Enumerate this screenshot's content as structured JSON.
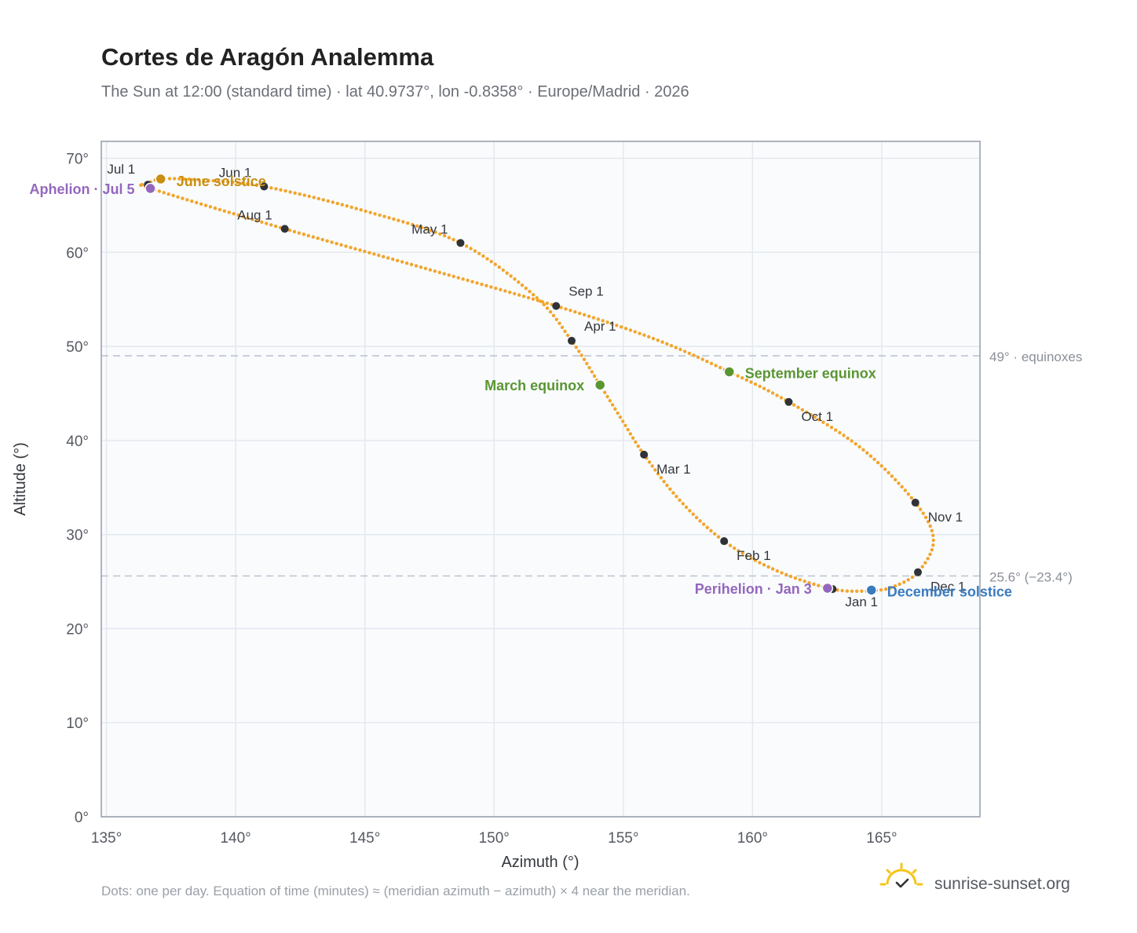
{
  "header": {
    "title": "Cortes de Aragón Analemma",
    "subtitle": "The Sun at 12:00 (standard time) · lat 40.9737°, lon -0.8358° · Europe/Madrid · 2026"
  },
  "footer": {
    "note": "Dots: one per day. Equation of time (minutes) ≈ (meridian azimuth − azimuth) × 4 near the meridian.",
    "brand": "sunrise-sunset.org"
  },
  "colors": {
    "curve": "#f2a52c",
    "month_dot": "#2f3338",
    "solstice_june": "#c98f12",
    "solstice_december": "#3a7bbf",
    "equinox": "#5a9532",
    "apsis": "#9467bd",
    "plot_bg": "#f9fbfd",
    "grid": "#e3e8ee",
    "frame": "#9aa3ae",
    "reference_line": "#bcc5d0"
  },
  "chart_data": {
    "type": "scatter",
    "xlabel": "Azimuth (°)",
    "ylabel": "Altitude (°)",
    "xlim": [
      134.8,
      168.8
    ],
    "ylim": [
      0,
      71.8
    ],
    "x_ticks": [
      135,
      140,
      145,
      150,
      155,
      160,
      165
    ],
    "x_tick_labels": [
      "135°",
      "140°",
      "145°",
      "150°",
      "155°",
      "160°",
      "165°"
    ],
    "y_ticks": [
      0,
      10,
      20,
      30,
      40,
      50,
      60,
      70
    ],
    "y_tick_labels": [
      "0°",
      "10°",
      "20°",
      "30°",
      "40°",
      "50°",
      "60°",
      "70°"
    ],
    "grid": true,
    "reference_lines": [
      {
        "altitude": 49.0,
        "label": "49° · equinoxes"
      },
      {
        "altitude": 25.6,
        "label": "25.6° (−23.4°)"
      }
    ],
    "month_markers": [
      {
        "label": "Jan 1",
        "azimuth": 163.1,
        "altitude": 24.2
      },
      {
        "label": "Feb 1",
        "azimuth": 158.9,
        "altitude": 29.3
      },
      {
        "label": "Mar 1",
        "azimuth": 155.8,
        "altitude": 38.5
      },
      {
        "label": "Apr 1",
        "azimuth": 153.0,
        "altitude": 50.6
      },
      {
        "label": "May 1",
        "azimuth": 148.7,
        "altitude": 61.0
      },
      {
        "label": "Jun 1",
        "azimuth": 141.1,
        "altitude": 67.0
      },
      {
        "label": "Jul 1",
        "azimuth": 136.6,
        "altitude": 67.2
      },
      {
        "label": "Aug 1",
        "azimuth": 141.9,
        "altitude": 62.5
      },
      {
        "label": "Sep 1",
        "azimuth": 152.4,
        "altitude": 54.3
      },
      {
        "label": "Oct 1",
        "azimuth": 161.4,
        "altitude": 44.1
      },
      {
        "label": "Nov 1",
        "azimuth": 166.3,
        "altitude": 33.4
      },
      {
        "label": "Dec 1",
        "azimuth": 166.4,
        "altitude": 26.0
      }
    ],
    "events": [
      {
        "label": "June solstice",
        "azimuth": 137.1,
        "altitude": 67.8,
        "color": "solstice_june"
      },
      {
        "label": "Aphelion · Jul 5",
        "azimuth": 136.7,
        "altitude": 66.8,
        "color": "apsis"
      },
      {
        "label": "March equinox",
        "azimuth": 154.1,
        "altitude": 45.9,
        "color": "equinox"
      },
      {
        "label": "September equinox",
        "azimuth": 159.1,
        "altitude": 47.3,
        "color": "equinox"
      },
      {
        "label": "Perihelion · Jan 3",
        "azimuth": 162.9,
        "altitude": 24.3,
        "color": "apsis"
      },
      {
        "label": "December solstice",
        "azimuth": 164.6,
        "altitude": 24.1,
        "color": "solstice_december"
      }
    ],
    "curve_path": [
      {
        "azimuth": 164.6,
        "altitude": 24.0
      },
      {
        "azimuth": 163.1,
        "altitude": 24.2
      },
      {
        "azimuth": 160.9,
        "altitude": 26.2
      },
      {
        "azimuth": 158.9,
        "altitude": 29.3
      },
      {
        "azimuth": 157.2,
        "altitude": 33.6
      },
      {
        "azimuth": 155.8,
        "altitude": 38.5
      },
      {
        "azimuth": 154.9,
        "altitude": 42.4
      },
      {
        "azimuth": 154.1,
        "altitude": 45.9
      },
      {
        "azimuth": 153.0,
        "altitude": 50.6
      },
      {
        "azimuth": 151.6,
        "altitude": 55.3
      },
      {
        "azimuth": 148.7,
        "altitude": 61.0
      },
      {
        "azimuth": 145.0,
        "altitude": 64.4
      },
      {
        "azimuth": 141.1,
        "altitude": 67.0
      },
      {
        "azimuth": 138.6,
        "altitude": 67.7
      },
      {
        "azimuth": 137.1,
        "altitude": 67.8
      },
      {
        "azimuth": 136.6,
        "altitude": 67.2
      },
      {
        "azimuth": 136.7,
        "altitude": 66.8
      },
      {
        "azimuth": 141.9,
        "altitude": 62.5
      },
      {
        "azimuth": 147.2,
        "altitude": 58.4
      },
      {
        "azimuth": 152.4,
        "altitude": 54.3
      },
      {
        "azimuth": 156.2,
        "altitude": 50.8
      },
      {
        "azimuth": 159.1,
        "altitude": 47.3
      },
      {
        "azimuth": 161.4,
        "altitude": 44.1
      },
      {
        "azimuth": 164.2,
        "altitude": 39.2
      },
      {
        "azimuth": 166.3,
        "altitude": 33.4
      },
      {
        "azimuth": 167.0,
        "altitude": 29.4
      },
      {
        "azimuth": 166.4,
        "altitude": 26.0
      },
      {
        "azimuth": 165.4,
        "altitude": 24.4
      },
      {
        "azimuth": 164.6,
        "altitude": 24.0
      }
    ]
  }
}
